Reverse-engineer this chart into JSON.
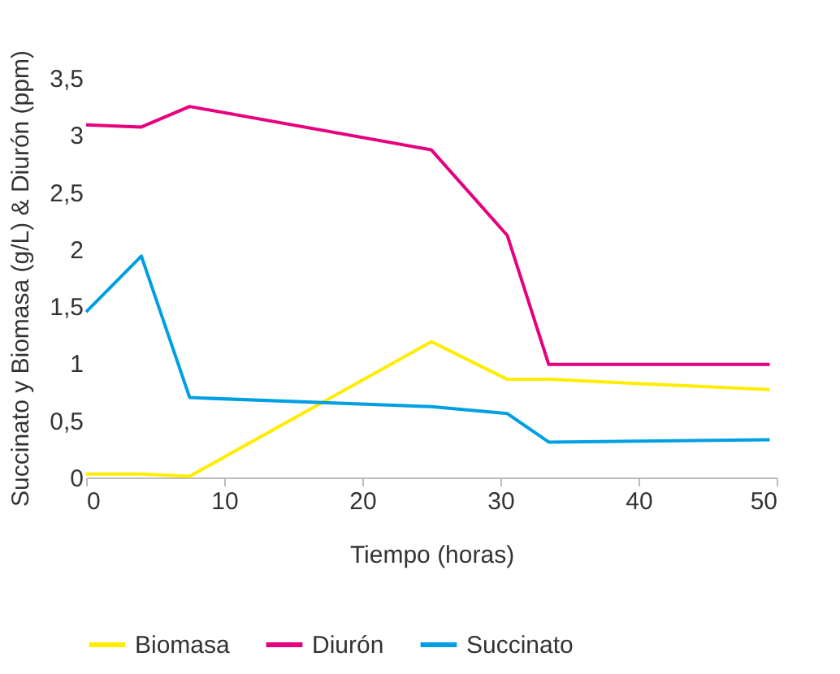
{
  "chart_data": {
    "type": "line",
    "xlabel": "Tiempo (horas)",
    "ylabel": "Succinato y Biomasa (g/L) & Diurón (ppm)",
    "xlim": [
      0,
      50
    ],
    "xticks": [
      0,
      10,
      20,
      30,
      40,
      50
    ],
    "ylim": [
      0,
      3.5
    ],
    "yticks": [
      0,
      {
        "value": 0.5,
        "label": "0,5"
      },
      1,
      {
        "value": 1.5,
        "label": "1,5"
      },
      2,
      {
        "value": 2.5,
        "label": "2,5"
      },
      3,
      {
        "value": 3.5,
        "label": "3,5"
      }
    ],
    "grid": false,
    "legend": "bottom",
    "marker": "none",
    "line_style": "solid",
    "series": [
      {
        "name": "Biomasa",
        "color": "#ffed00",
        "x": [
          0,
          4,
          7.5,
          25,
          30.5,
          33.5,
          49.5
        ],
        "values": [
          0.03,
          0.03,
          0.01,
          1.19,
          0.86,
          0.86,
          0.77
        ]
      },
      {
        "name": "Diurón",
        "color": "#e6007e",
        "x": [
          0,
          4,
          7.5,
          25,
          30.5,
          33.5,
          49.5
        ],
        "values": [
          3.09,
          3.07,
          3.25,
          2.87,
          2.12,
          0.99,
          0.99
        ]
      },
      {
        "name": "Succinato",
        "color": "#009fe3",
        "x": [
          0,
          4,
          7.5,
          25,
          30.5,
          33.5,
          49.5
        ],
        "values": [
          1.45,
          1.94,
          0.7,
          0.62,
          0.56,
          0.31,
          0.33
        ]
      }
    ]
  }
}
